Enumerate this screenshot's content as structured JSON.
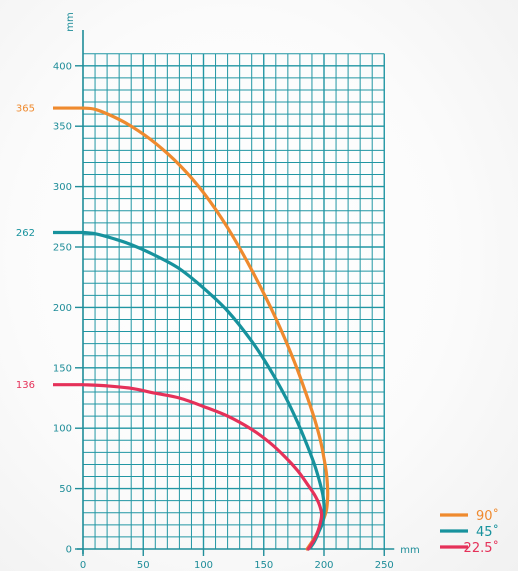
{
  "chart_data": {
    "type": "line",
    "title": "",
    "xlabel": "mm",
    "ylabel": "mm",
    "xlim": [
      0,
      250
    ],
    "ylim": [
      0,
      415
    ],
    "x_ticks": [
      "0",
      "50",
      "100",
      "150",
      "200",
      "250"
    ],
    "y_ticks": [
      "0",
      "50",
      "100",
      "150",
      "200",
      "250",
      "300",
      "350",
      "400"
    ],
    "minor_grid_step": 10,
    "major_grid_step": 50,
    "grid": true,
    "legend_position": "bottom-right",
    "colors": {
      "grid": "#2196a3",
      "axis": "#1f8d99",
      "tick_label": "#1f8d99"
    },
    "series": [
      {
        "name": "90˚",
        "color": "#ef8a2e",
        "marker_label": "365",
        "x": [
          0,
          10,
          25,
          40,
          60,
          80,
          100,
          120,
          140,
          160,
          175,
          185,
          192,
          197,
          200,
          202,
          203,
          203,
          202,
          199,
          195,
          190,
          186
        ],
        "y": [
          365,
          364,
          358,
          350,
          336,
          318,
          295,
          266,
          231,
          191,
          156,
          129,
          108,
          90,
          75,
          63,
          50,
          42,
          32,
          23,
          14,
          6,
          0
        ]
      },
      {
        "name": "45˚",
        "color": "#17929d",
        "marker_label": "262",
        "x": [
          0,
          10,
          25,
          40,
          60,
          80,
          100,
          120,
          140,
          155,
          168,
          178,
          186,
          192,
          196,
          199,
          200,
          200,
          199,
          196,
          193,
          190,
          187
        ],
        "y": [
          262,
          261,
          257,
          252,
          243,
          232,
          216,
          197,
          172,
          149,
          126,
          105,
          86,
          70,
          57,
          45,
          37,
          30,
          22,
          15,
          8,
          3,
          0
        ]
      },
      {
        "name": "22.5˚",
        "color": "#e53159",
        "marker_label": "136",
        "x": [
          0,
          20,
          40,
          60,
          80,
          100,
          120,
          140,
          155,
          168,
          178,
          186,
          192,
          196,
          198,
          197,
          195,
          192,
          189,
          187
        ],
        "y": [
          136,
          135,
          133,
          129,
          125,
          118,
          110,
          99,
          88,
          76,
          65,
          54,
          45,
          37,
          29,
          22,
          15,
          8,
          3,
          0
        ]
      }
    ]
  }
}
